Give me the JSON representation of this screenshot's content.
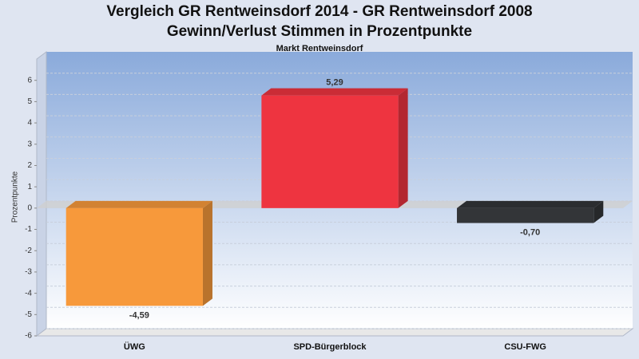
{
  "chart_data": {
    "type": "bar3d",
    "title": [
      "Vergleich GR Rentweinsdorf 2014 - GR Rentweinsdorf 2008",
      "Gewinn/Verlust Stimmen in Prozentpunkte"
    ],
    "subtitle": "Markt Rentweinsdorf",
    "y_label": "Prozentpunkte",
    "categories": [
      "ÜWG",
      "SPD-Bürgerblock",
      "CSU-FWG"
    ],
    "values": [
      -4.59,
      5.29,
      -0.7
    ],
    "value_labels": [
      "-4,59",
      "5,29",
      "-0,70"
    ],
    "colors": [
      "#f7993b",
      "#ee3440",
      "#333538"
    ],
    "ylim": [
      -6,
      7
    ],
    "yticks": [
      -6,
      -5,
      -4,
      -3,
      -2,
      -1,
      0,
      1,
      2,
      3,
      4,
      5,
      6
    ],
    "grid": true
  }
}
